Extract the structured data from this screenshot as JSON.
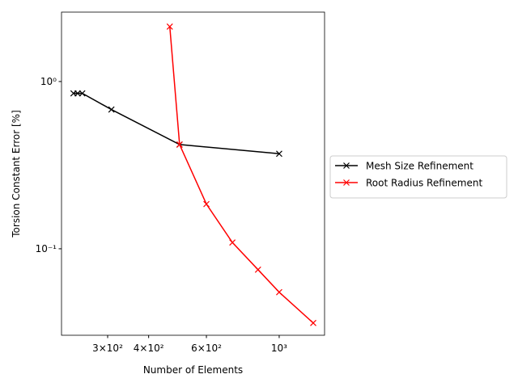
{
  "chart_data": {
    "type": "line",
    "xlabel": "Number of Elements",
    "ylabel": "Torsion Constant Error [%]",
    "xscale": "log",
    "yscale": "log",
    "xlim": [
      217,
      1375
    ],
    "ylim": [
      0.0304,
      2.6
    ],
    "xticks": [
      {
        "value": 300,
        "label": "3×10²"
      },
      {
        "value": 400,
        "label": "4×10²"
      },
      {
        "value": 600,
        "label": "6×10²"
      },
      {
        "value": 1000,
        "label": "10³"
      }
    ],
    "yticks": [
      {
        "value": 0.1,
        "label": "10⁻¹"
      },
      {
        "value": 1,
        "label": "10⁰"
      }
    ],
    "legend": "outside-right",
    "series": [
      {
        "name": "Mesh Size Refinement",
        "color": "#000000",
        "x": [
          236,
          243,
          251,
          308,
          497,
          1000
        ],
        "values": [
          0.85,
          0.85,
          0.85,
          0.68,
          0.42,
          0.37
        ]
      },
      {
        "name": "Root Radius Refinement",
        "color": "#ff0000",
        "x": [
          464,
          497,
          600,
          720,
          862,
          1000,
          1270
        ],
        "values": [
          2.13,
          0.42,
          0.185,
          0.109,
          0.075,
          0.055,
          0.036
        ]
      }
    ]
  }
}
